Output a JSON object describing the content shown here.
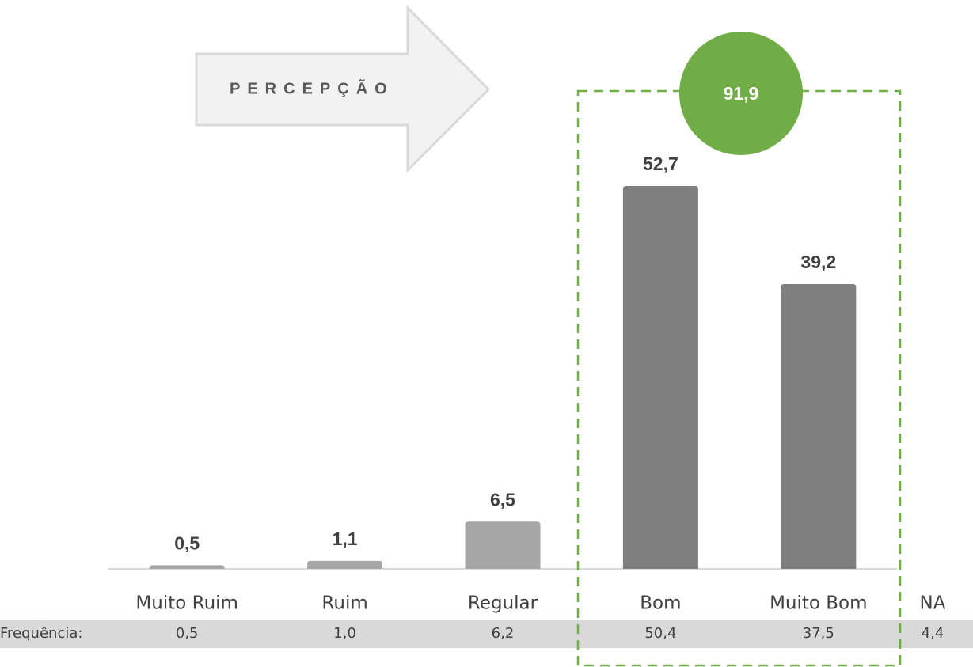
{
  "chart_data": {
    "type": "bar",
    "annotation": "PERCEPÇÃO",
    "highlight_label": "91,9",
    "categories": [
      "Muito Ruim",
      "Ruim",
      "Regular",
      "Bom",
      "Muito Bom"
    ],
    "values": [
      0.5,
      1.1,
      6.5,
      52.7,
      39.2
    ],
    "value_labels": [
      "0,5",
      "1,1",
      "6,5",
      "52,7",
      "39,2"
    ],
    "colors": [
      "#a6a6a6",
      "#a6a6a6",
      "#a6a6a6",
      "#7f7f7f",
      "#7f7f7f"
    ],
    "ylim": [
      0,
      60
    ],
    "extra_category": "NA",
    "frequency": {
      "label": "Frequência:",
      "values": [
        "0,5",
        "1,0",
        "6,2",
        "50,4",
        "37,5",
        "4,4"
      ]
    }
  }
}
